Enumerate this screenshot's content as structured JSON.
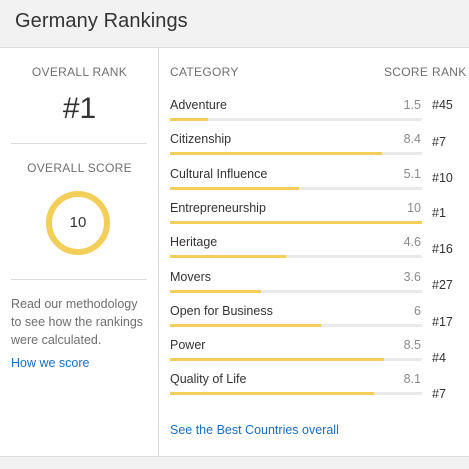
{
  "header": {
    "title": "Germany Rankings"
  },
  "overall": {
    "rank_label": "OVERALL RANK",
    "rank_value": "#1",
    "score_label": "OVERALL SCORE",
    "score_value": "10",
    "score_fraction": 1.0,
    "ring_color": "#f3cf5a"
  },
  "methodology": {
    "text": "Read our methodology to see how the rankings were calculated.",
    "link": "How we score"
  },
  "table": {
    "headers": {
      "category": "CATEGORY",
      "score": "SCORE",
      "rank": "RANK"
    },
    "max_score": 10,
    "bar_color": "#f3cf5a",
    "rows": [
      {
        "category": "Adventure",
        "score": "1.5",
        "rank": "#45"
      },
      {
        "category": "Citizenship",
        "score": "8.4",
        "rank": "#7"
      },
      {
        "category": "Cultural Influence",
        "score": "5.1",
        "rank": "#10"
      },
      {
        "category": "Entrepreneurship",
        "score": "10",
        "rank": "#1"
      },
      {
        "category": "Heritage",
        "score": "4.6",
        "rank": "#16"
      },
      {
        "category": "Movers",
        "score": "3.6",
        "rank": "#27"
      },
      {
        "category": "Open for Business",
        "score": "6",
        "rank": "#17"
      },
      {
        "category": "Power",
        "score": "8.5",
        "rank": "#4"
      },
      {
        "category": "Quality of Life",
        "score": "8.1",
        "rank": "#7"
      }
    ],
    "footer_link": "See the Best Countries overall"
  }
}
